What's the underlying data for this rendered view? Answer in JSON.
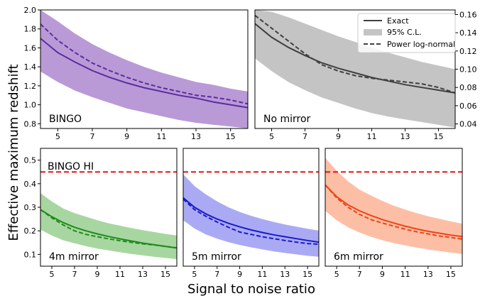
{
  "figure": {
    "ylabel": "Effective maximum redshift",
    "xlabel": "Signal to noise ratio",
    "legend": {
      "placement": "top-right",
      "exact_label": "Exact",
      "cl_label": "95% C.L.",
      "lognormal_label": "Power log-normal"
    },
    "reference_line_label": "BINGO HI"
  },
  "chart_data": [
    {
      "type": "line",
      "panel": "BINGO",
      "label": "BINGO",
      "color": "#5b2ca0",
      "band_color": "#b99ad6",
      "xlim": [
        4,
        16
      ],
      "ylim": [
        0.75,
        2.0
      ],
      "xticks": [
        5,
        7,
        9,
        11,
        13,
        15
      ],
      "yticks": [
        0.8,
        1.0,
        1.2,
        1.4,
        1.6,
        1.8,
        2.0
      ],
      "ytick_labels": [
        "0.8",
        "1.0",
        "1.2",
        "1.4",
        "1.6",
        "1.8",
        "2.0"
      ],
      "yaxis_side": "left",
      "x": [
        4,
        5,
        6,
        7,
        8,
        9,
        10,
        11,
        12,
        13,
        14,
        15,
        16
      ],
      "exact": [
        1.7,
        1.55,
        1.45,
        1.36,
        1.29,
        1.23,
        1.18,
        1.14,
        1.1,
        1.07,
        1.03,
        1.0,
        0.97
      ],
      "lognormal": [
        1.85,
        1.68,
        1.55,
        1.44,
        1.36,
        1.29,
        1.23,
        1.18,
        1.14,
        1.1,
        1.08,
        1.05,
        1.01
      ],
      "band_upper": [
        2.0,
        1.88,
        1.75,
        1.64,
        1.55,
        1.47,
        1.4,
        1.34,
        1.29,
        1.24,
        1.21,
        1.17,
        1.14
      ],
      "band_lower": [
        1.35,
        1.24,
        1.15,
        1.08,
        1.02,
        0.96,
        0.92,
        0.88,
        0.84,
        0.81,
        0.79,
        0.77,
        0.75
      ]
    },
    {
      "type": "line",
      "panel": "No mirror",
      "label": "No mirror",
      "color": "#404040",
      "band_color": "#c4c4c4",
      "xlim": [
        4,
        16
      ],
      "ylim": [
        0.035,
        0.165
      ],
      "xticks": [
        5,
        7,
        9,
        11,
        13,
        15
      ],
      "yticks": [
        0.04,
        0.06,
        0.08,
        0.1,
        0.12,
        0.14,
        0.16
      ],
      "ytick_labels": [
        "0.04",
        "0.06",
        "0.08",
        "0.10",
        "0.12",
        "0.14",
        "0.16"
      ],
      "yaxis_side": "right",
      "x": [
        4,
        5,
        6,
        7,
        8,
        9,
        10,
        11,
        12,
        13,
        14,
        15,
        16
      ],
      "exact": [
        0.15,
        0.135,
        0.124,
        0.115,
        0.107,
        0.101,
        0.096,
        0.091,
        0.087,
        0.083,
        0.08,
        0.077,
        0.074
      ],
      "lognormal": [
        0.159,
        0.145,
        0.131,
        0.117,
        0.105,
        0.098,
        0.093,
        0.09,
        0.088,
        0.086,
        0.084,
        0.08,
        0.074
      ],
      "band_upper": [
        0.165,
        0.163,
        0.157,
        0.15,
        0.143,
        0.136,
        0.13,
        0.124,
        0.118,
        0.113,
        0.108,
        0.104,
        0.1
      ],
      "band_lower": [
        0.112,
        0.098,
        0.086,
        0.077,
        0.069,
        0.063,
        0.057,
        0.052,
        0.048,
        0.045,
        0.042,
        0.039,
        0.036
      ]
    },
    {
      "type": "line",
      "panel": "4m mirror",
      "label": "4m mirror",
      "color": "#1e8a1e",
      "band_color": "#a8d6a0",
      "xlim": [
        4,
        16
      ],
      "ylim": [
        0.05,
        0.55
      ],
      "xticks": [
        5,
        7,
        9,
        11,
        13,
        15
      ],
      "yticks": [
        0.1,
        0.2,
        0.3,
        0.4,
        0.5
      ],
      "ytick_labels": [
        "0.1",
        "0.2",
        "0.3",
        "0.4",
        "0.5"
      ],
      "yaxis_side": "left",
      "reference_y": 0.45,
      "x": [
        4,
        5,
        6,
        7,
        8,
        9,
        10,
        11,
        12,
        13,
        14,
        15,
        16
      ],
      "exact": [
        0.29,
        0.26,
        0.235,
        0.215,
        0.2,
        0.187,
        0.176,
        0.166,
        0.157,
        0.148,
        0.141,
        0.134,
        0.127
      ],
      "lognormal": [
        0.29,
        0.255,
        0.225,
        0.2,
        0.185,
        0.175,
        0.166,
        0.158,
        0.151,
        0.145,
        0.14,
        0.134,
        0.128
      ],
      "band_upper": [
        0.36,
        0.325,
        0.295,
        0.275,
        0.26,
        0.245,
        0.232,
        0.222,
        0.212,
        0.203,
        0.195,
        0.187,
        0.18
      ],
      "band_lower": [
        0.205,
        0.18,
        0.16,
        0.147,
        0.135,
        0.125,
        0.117,
        0.109,
        0.102,
        0.096,
        0.09,
        0.085,
        0.08
      ]
    },
    {
      "type": "line",
      "panel": "5m mirror",
      "label": "5m mirror",
      "color": "#1a1acc",
      "band_color": "#aaaaf4",
      "xlim": [
        4,
        16
      ],
      "ylim": [
        0.05,
        0.55
      ],
      "xticks": [
        5,
        7,
        9,
        11,
        13,
        15
      ],
      "yticks": [
        0.1,
        0.2,
        0.3,
        0.4,
        0.5
      ],
      "ytick_labels": [
        "0.1",
        "0.2",
        "0.3",
        "0.4",
        "0.5"
      ],
      "yaxis_side": "none",
      "reference_y": 0.45,
      "x": [
        4,
        5,
        6,
        7,
        8,
        9,
        10,
        11,
        12,
        13,
        14,
        15,
        16
      ],
      "exact": [
        0.34,
        0.3,
        0.272,
        0.25,
        0.232,
        0.217,
        0.204,
        0.193,
        0.183,
        0.175,
        0.167,
        0.159,
        0.152
      ],
      "lognormal": [
        0.335,
        0.29,
        0.262,
        0.237,
        0.215,
        0.195,
        0.185,
        0.175,
        0.167,
        0.159,
        0.152,
        0.146,
        0.143
      ],
      "band_upper": [
        0.44,
        0.39,
        0.355,
        0.325,
        0.3,
        0.28,
        0.264,
        0.25,
        0.238,
        0.227,
        0.218,
        0.209,
        0.201
      ],
      "band_lower": [
        0.245,
        0.21,
        0.185,
        0.167,
        0.152,
        0.14,
        0.13,
        0.121,
        0.113,
        0.106,
        0.1,
        0.094,
        0.09
      ]
    },
    {
      "type": "line",
      "panel": "6m mirror",
      "label": "6m mirror",
      "color": "#ee4414",
      "band_color": "#fcbfa6",
      "xlim": [
        4,
        16
      ],
      "ylim": [
        0.05,
        0.55
      ],
      "xticks": [
        5,
        7,
        9,
        11,
        13,
        15
      ],
      "yticks": [
        0.1,
        0.2,
        0.3,
        0.4,
        0.5
      ],
      "ytick_labels": [
        "0.1",
        "0.2",
        "0.3",
        "0.4",
        "0.5"
      ],
      "yaxis_side": "none",
      "reference_y": 0.45,
      "x": [
        4,
        5,
        6,
        7,
        8,
        9,
        10,
        11,
        12,
        13,
        14,
        15,
        16
      ],
      "exact": [
        0.395,
        0.345,
        0.31,
        0.285,
        0.265,
        0.248,
        0.233,
        0.22,
        0.208,
        0.198,
        0.19,
        0.182,
        0.176
      ],
      "lognormal": [
        0.395,
        0.34,
        0.3,
        0.27,
        0.248,
        0.233,
        0.22,
        0.207,
        0.196,
        0.187,
        0.178,
        0.172,
        0.165
      ],
      "band_upper": [
        0.51,
        0.455,
        0.41,
        0.375,
        0.35,
        0.327,
        0.307,
        0.29,
        0.275,
        0.262,
        0.251,
        0.24,
        0.23
      ],
      "band_lower": [
        0.285,
        0.245,
        0.215,
        0.193,
        0.175,
        0.16,
        0.148,
        0.138,
        0.129,
        0.121,
        0.114,
        0.108,
        0.102
      ]
    }
  ]
}
